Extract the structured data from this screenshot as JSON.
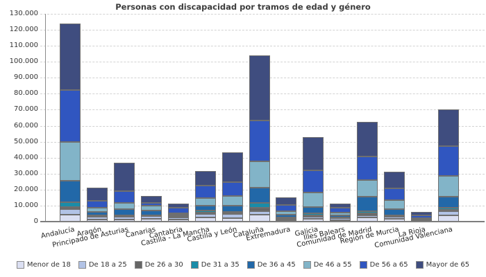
{
  "title": "Personas con discapacidad por tramos de edad y género",
  "chart_data": {
    "type": "bar",
    "stacked": true,
    "title": "Personas con discapacidad por tramos de edad y género",
    "xlabel": "",
    "ylabel": "",
    "grid": true,
    "legend_position": "bottom",
    "categories": [
      "Andalucía",
      "Aragón",
      "Principado de Asturias",
      "Canarias",
      "Cantabria",
      "Castilla - La Mancha",
      "Castilla y León",
      "Cataluña",
      "Extremadura",
      "Galicia",
      "Illes Balears",
      "Comunidad de Madrid",
      "Región de Murcia",
      "La Rioja",
      "Comunidad Valenciana"
    ],
    "series": [
      {
        "name": "Menor de 18",
        "color": "#dbdff2",
        "values": [
          4300,
          1400,
          1400,
          1700,
          1400,
          2600,
          2200,
          4300,
          900,
          1700,
          900,
          2600,
          1700,
          300,
          4000
        ]
      },
      {
        "name": "De 18 a 25",
        "color": "#b2c3e6",
        "values": [
          3300,
          1500,
          1500,
          1600,
          1300,
          2300,
          2500,
          2200,
          1100,
          1400,
          1200,
          1300,
          1200,
          400,
          2600
        ]
      },
      {
        "name": "De 26 a 30",
        "color": "#666666",
        "values": [
          1700,
          600,
          600,
          400,
          300,
          900,
          700,
          2200,
          300,
          900,
          300,
          1300,
          600,
          200,
          900
        ]
      },
      {
        "name": "De 31 a 35",
        "color": "#1a8ca8",
        "values": [
          2900,
          600,
          600,
          400,
          300,
          1000,
          700,
          2900,
          300,
          1000,
          300,
          1300,
          600,
          200,
          1000
        ]
      },
      {
        "name": "De 36 a 45",
        "color": "#2268a8",
        "values": [
          13300,
          2000,
          3500,
          2900,
          1100,
          3300,
          3800,
          9700,
          1700,
          4300,
          1400,
          9100,
          3600,
          500,
          7100
        ]
      },
      {
        "name": "De 46 a 55",
        "color": "#82b4c8",
        "values": [
          24300,
          2600,
          4000,
          2900,
          1000,
          4600,
          6100,
          16300,
          2000,
          8900,
          1700,
          10400,
          5800,
          700,
          12900
        ]
      },
      {
        "name": "De 56 a 65",
        "color": "#3056c0",
        "values": [
          32500,
          4300,
          7500,
          1700,
          3400,
          7700,
          8900,
          25700,
          4200,
          13900,
          2900,
          14900,
          7200,
          1500,
          18800
        ]
      },
      {
        "name": "Mayor de 65",
        "color": "#3f4d7f",
        "values": [
          41600,
          8400,
          17800,
          4300,
          2600,
          9100,
          18500,
          40700,
          4600,
          20800,
          2600,
          21700,
          10400,
          2100,
          22800
        ]
      }
    ],
    "y_axis": {
      "min": 0,
      "max": 130000,
      "step": 10000,
      "tick_labels": [
        "0",
        "10.000",
        "20.000",
        "30.000",
        "40.000",
        "50.000",
        "60.000",
        "70.000",
        "80.000",
        "90.000",
        "100.000",
        "110.000",
        "120.000",
        "130.000"
      ]
    }
  },
  "legend": {
    "entries": [
      "Menor de 18",
      "De 18 a 25",
      "De 26 a 30",
      "De 31 a 35",
      "De 36 a 45",
      "De 46 a 55",
      "De 56 a 65",
      "Mayor de 65"
    ]
  },
  "style_colors": {
    "segment_border": "#6f6f6f",
    "gridline": "#d2d2d2",
    "axis": "#8a8a8a",
    "title_text": "#3c3c3c",
    "tick_text": "#333333"
  }
}
